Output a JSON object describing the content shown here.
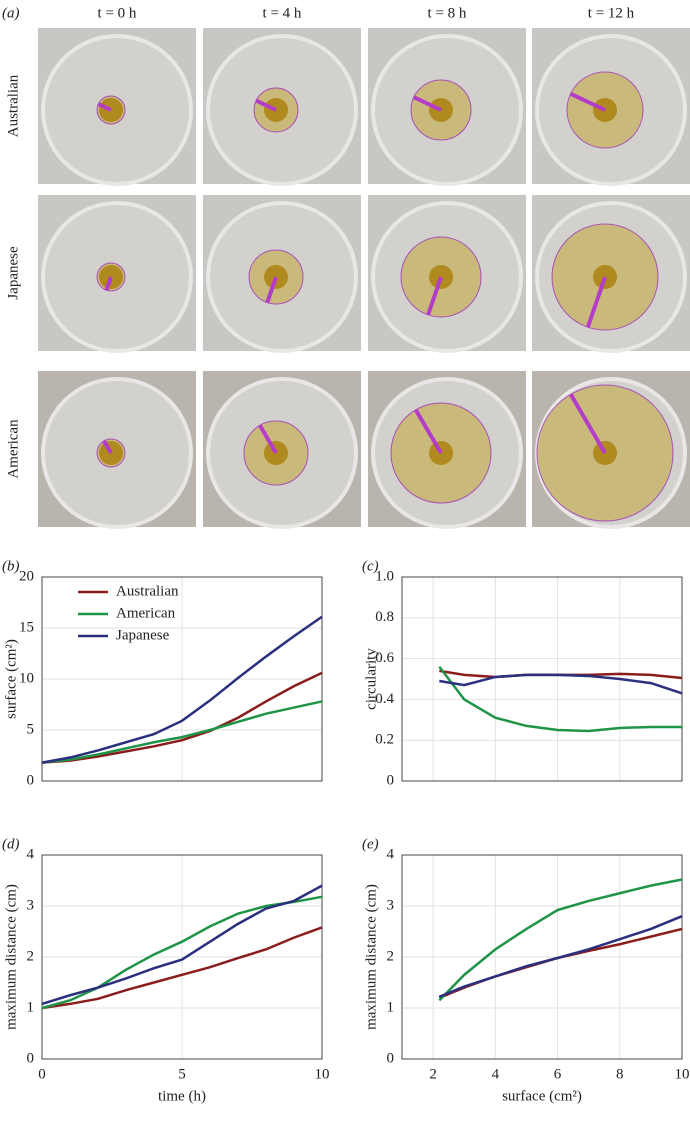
{
  "panel_a": {
    "label": "(a)",
    "columns": [
      "t = 0 h",
      "t = 4 h",
      "t = 8 h",
      "t = 12 h"
    ],
    "rows": [
      "Australian",
      "Japanese",
      "American"
    ]
  },
  "chart_data": [
    {
      "type": "line",
      "panel": "(b)",
      "ylabel": "surface (cm²)",
      "x": [
        0,
        1,
        2,
        3,
        4,
        5,
        6,
        7,
        8,
        9,
        10
      ],
      "xlim": [
        0,
        10
      ],
      "xticks": [
        0,
        5,
        10
      ],
      "ylim": [
        0,
        20
      ],
      "yticks": [
        0,
        5,
        10,
        15,
        20
      ],
      "grid": true,
      "legend": "upper left",
      "series": [
        {
          "name": "Australian",
          "color": "#8b1c1c",
          "values": [
            1.8,
            2.0,
            2.4,
            2.9,
            3.4,
            4.0,
            4.9,
            6.2,
            7.8,
            9.3,
            10.6
          ]
        },
        {
          "name": "American",
          "color": "#1f9447",
          "values": [
            1.8,
            2.1,
            2.6,
            3.2,
            3.8,
            4.3,
            5.0,
            5.8,
            6.6,
            7.2,
            7.8
          ]
        },
        {
          "name": "Japanese",
          "color": "#2a2f7e",
          "values": [
            1.8,
            2.3,
            3.0,
            3.8,
            4.6,
            5.9,
            7.9,
            10.1,
            12.2,
            14.2,
            16.1
          ]
        }
      ]
    },
    {
      "type": "line",
      "panel": "(c)",
      "ylabel": "circularity",
      "x": [
        2.2,
        3,
        4,
        5,
        6,
        7,
        8,
        9,
        10
      ],
      "xlim": [
        1,
        10
      ],
      "xticks": [
        2,
        4,
        6,
        8,
        10
      ],
      "ylim": [
        0,
        1
      ],
      "yticks": [
        0,
        0.2,
        0.4,
        0.6,
        0.8,
        {
          "value": 1,
          "label": "1.0"
        }
      ],
      "grid": true,
      "series": [
        {
          "color": "#8b1c1c",
          "values": [
            0.54,
            0.52,
            0.51,
            0.52,
            0.52,
            0.52,
            0.525,
            0.52,
            0.505
          ]
        },
        {
          "color": "#1f9447",
          "values": [
            0.56,
            0.4,
            0.31,
            0.27,
            0.25,
            0.245,
            0.26,
            0.265,
            0.265
          ]
        },
        {
          "color": "#2a2f7e",
          "values": [
            0.49,
            0.47,
            0.51,
            0.52,
            0.52,
            0.515,
            0.5,
            0.48,
            0.43
          ]
        }
      ]
    },
    {
      "type": "line",
      "panel": "(d)",
      "xlabel": "time (h)",
      "ylabel": "maximum distance (cm)",
      "x": [
        0,
        1,
        2,
        3,
        4,
        5,
        6,
        7,
        8,
        9,
        10
      ],
      "xlim": [
        0,
        10
      ],
      "xticks": [
        0,
        5,
        10
      ],
      "ylim": [
        0,
        4
      ],
      "yticks": [
        0,
        1,
        2,
        3,
        4
      ],
      "grid": true,
      "series": [
        {
          "color": "#8b1c1c",
          "values": [
            1.0,
            1.08,
            1.18,
            1.35,
            1.5,
            1.65,
            1.8,
            1.98,
            2.15,
            2.38,
            2.58
          ]
        },
        {
          "color": "#1f9447",
          "values": [
            1.0,
            1.15,
            1.4,
            1.75,
            2.05,
            2.3,
            2.6,
            2.85,
            3.0,
            3.08,
            3.18
          ]
        },
        {
          "color": "#2a2f7e",
          "values": [
            1.08,
            1.25,
            1.4,
            1.58,
            1.78,
            1.95,
            2.3,
            2.65,
            2.95,
            3.1,
            3.4
          ]
        }
      ]
    },
    {
      "type": "line",
      "panel": "(e)",
      "xlabel": "surface (cm²)",
      "ylabel": "maximum distance (cm)",
      "x": [
        2.2,
        3,
        4,
        5,
        6,
        7,
        8,
        9,
        10
      ],
      "xlim": [
        1,
        10
      ],
      "xticks": [
        2,
        4,
        6,
        8,
        10
      ],
      "ylim": [
        0,
        4
      ],
      "yticks": [
        0,
        1,
        2,
        3,
        4
      ],
      "grid": true,
      "series": [
        {
          "color": "#8b1c1c",
          "values": [
            1.2,
            1.4,
            1.62,
            1.8,
            1.98,
            2.12,
            2.25,
            2.4,
            2.55
          ]
        },
        {
          "color": "#1f9447",
          "values": [
            1.15,
            1.65,
            2.15,
            2.55,
            2.92,
            3.1,
            3.25,
            3.4,
            3.52
          ]
        },
        {
          "color": "#2a2f7e",
          "values": [
            1.22,
            1.42,
            1.62,
            1.82,
            1.98,
            2.15,
            2.35,
            2.55,
            2.8
          ]
        }
      ]
    }
  ]
}
